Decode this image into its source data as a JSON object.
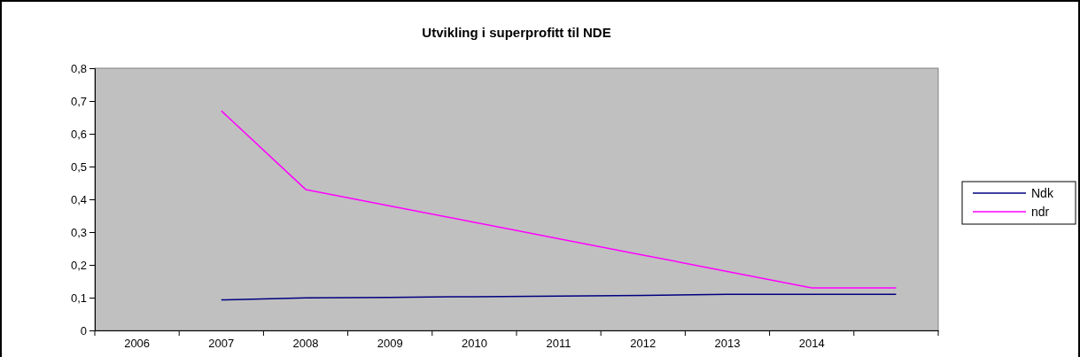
{
  "chart_data": {
    "type": "line",
    "title": "Utvikling i superprofitt til NDE",
    "categories": [
      "2006",
      "2007",
      "2008",
      "2009",
      "2010",
      "2011",
      "2012",
      "2013",
      "2014",
      null
    ],
    "series": [
      {
        "name": "Ndk",
        "color": "#000080",
        "values": [
          null,
          0.093,
          0.099,
          0.101,
          0.103,
          0.105,
          0.107,
          0.11,
          0.11,
          0.11
        ]
      },
      {
        "name": "ndr",
        "color": "#ff00ff",
        "values": [
          null,
          0.67,
          0.43,
          0.38,
          0.33,
          0.28,
          0.23,
          0.18,
          0.13,
          0.13
        ]
      }
    ],
    "ylim": [
      0,
      0.8
    ],
    "yticks": [
      {
        "value": 0,
        "label": "0"
      },
      {
        "value": 0.1,
        "label": "0,1"
      },
      {
        "value": 0.2,
        "label": "0,2"
      },
      {
        "value": 0.3,
        "label": "0,3"
      },
      {
        "value": 0.4,
        "label": "0,4"
      },
      {
        "value": 0.5,
        "label": "0,5"
      },
      {
        "value": 0.6,
        "label": "0,6"
      },
      {
        "value": 0.7,
        "label": "0,7"
      },
      {
        "value": 0.8,
        "label": "0,8"
      }
    ],
    "grid": false,
    "legend": "right",
    "marker": "none",
    "line_style": "solid"
  }
}
